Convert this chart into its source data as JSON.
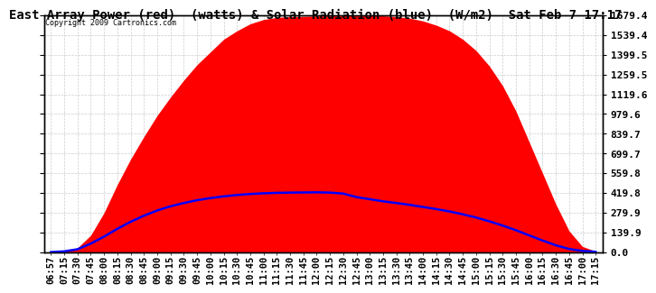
{
  "title": "East Array Power (red)  (watts) & Solar Radiation (blue)  (W/m2)  Sat Feb 7 17:17",
  "copyright": "Copyright 2009 Cartronics.com",
  "bg_color": "#ffffff",
  "plot_bg_color": "#ffffff",
  "grid_color": "#cccccc",
  "y_max": 1679.4,
  "y_min": 0.0,
  "y_ticks": [
    0.0,
    139.9,
    279.9,
    419.8,
    559.8,
    699.7,
    839.7,
    979.6,
    1119.6,
    1259.5,
    1399.5,
    1539.4,
    1679.4
  ],
  "x_labels": [
    "06:57",
    "07:15",
    "07:30",
    "07:45",
    "08:00",
    "08:15",
    "08:30",
    "08:45",
    "09:00",
    "09:15",
    "09:30",
    "09:45",
    "10:00",
    "10:15",
    "10:30",
    "10:45",
    "11:00",
    "11:15",
    "11:30",
    "11:45",
    "12:00",
    "12:15",
    "12:30",
    "12:45",
    "13:00",
    "13:15",
    "13:30",
    "13:45",
    "14:00",
    "14:15",
    "14:30",
    "14:45",
    "15:00",
    "15:15",
    "15:30",
    "15:45",
    "16:00",
    "16:15",
    "16:30",
    "16:45",
    "17:00",
    "17:15"
  ],
  "red_fill_color": "#ff0000",
  "blue_line_color": "#0000ff",
  "title_fontsize": 10,
  "tick_fontsize": 7.5,
  "power_data": [
    0,
    5,
    30,
    120,
    280,
    480,
    660,
    820,
    970,
    1100,
    1220,
    1330,
    1420,
    1510,
    1570,
    1620,
    1650,
    1665,
    1670,
    1672,
    1675,
    1676,
    1676,
    1679,
    1678,
    1676,
    1670,
    1660,
    1640,
    1610,
    1570,
    1510,
    1430,
    1320,
    1180,
    1000,
    780,
    560,
    340,
    150,
    40,
    5
  ],
  "solar_data": [
    0,
    5,
    20,
    60,
    110,
    165,
    215,
    258,
    295,
    325,
    348,
    368,
    383,
    395,
    405,
    412,
    417,
    420,
    422,
    423,
    424,
    422,
    415,
    390,
    375,
    360,
    348,
    335,
    320,
    305,
    288,
    268,
    245,
    218,
    188,
    155,
    118,
    82,
    48,
    22,
    8,
    2
  ]
}
